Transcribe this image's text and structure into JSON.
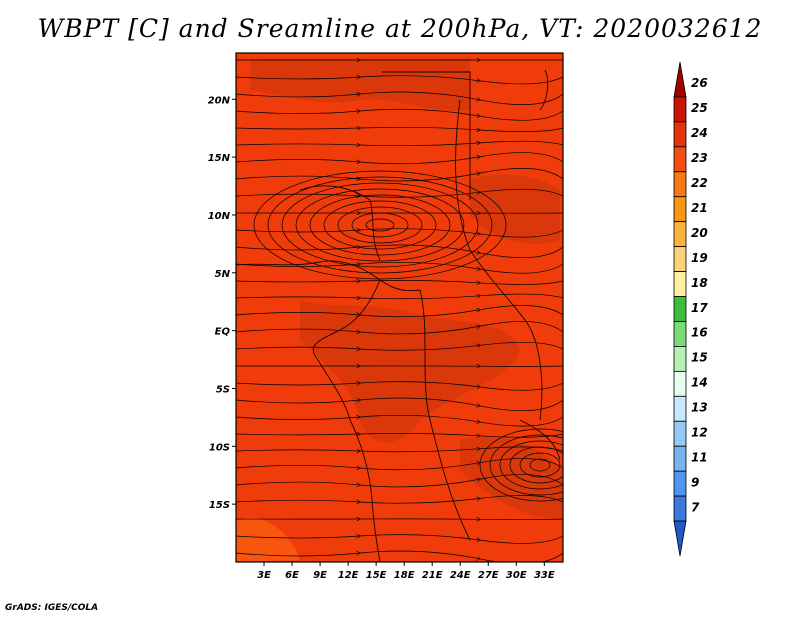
{
  "title": "WBPT [C] and Sreamline at 200hPa, VT: 2020032612",
  "credit": "GrADS: IGES/COLA",
  "map": {
    "lon_range": [
      0,
      35
    ],
    "lat_range": [
      -20,
      24
    ],
    "lat_labels": [
      {
        "text": "20N",
        "lat": 20
      },
      {
        "text": "15N",
        "lat": 15
      },
      {
        "text": "10N",
        "lat": 10
      },
      {
        "text": "5N",
        "lat": 5
      },
      {
        "text": "EQ",
        "lat": 0
      },
      {
        "text": "5S",
        "lat": -5
      },
      {
        "text": "10S",
        "lat": -10
      },
      {
        "text": "15S",
        "lat": -15
      }
    ],
    "lon_labels": [
      {
        "text": "3E",
        "lon": 3
      },
      {
        "text": "6E",
        "lon": 6
      },
      {
        "text": "9E",
        "lon": 9
      },
      {
        "text": "12E",
        "lon": 12
      },
      {
        "text": "15E",
        "lon": 15
      },
      {
        "text": "18E",
        "lon": 18
      },
      {
        "text": "21E",
        "lon": 21
      },
      {
        "text": "24E",
        "lon": 24
      },
      {
        "text": "27E",
        "lon": 27
      },
      {
        "text": "30E",
        "lon": 30
      },
      {
        "text": "33E",
        "lon": 33
      }
    ],
    "field_colors": {
      "base": "#f03c0a",
      "darker": "#d6360c",
      "lighter": "#fa5a0e"
    }
  },
  "colorbar": {
    "labels": [
      "26",
      "25",
      "24",
      "23",
      "22",
      "21",
      "20",
      "19",
      "18",
      "17",
      "16",
      "15",
      "14",
      "13",
      "12",
      "11",
      "9",
      "7"
    ],
    "colors": [
      "#a50000",
      "#c81400",
      "#e6320a",
      "#f05014",
      "#fa7814",
      "#fa9614",
      "#fab43c",
      "#fad278",
      "#fff0a0",
      "#3cbe3c",
      "#78dc78",
      "#b4f0b4",
      "#e6fff0",
      "#c8e6ff",
      "#96c8f5",
      "#78b4f0",
      "#5096f0",
      "#3c78dc",
      "#1e5ac8"
    ]
  }
}
